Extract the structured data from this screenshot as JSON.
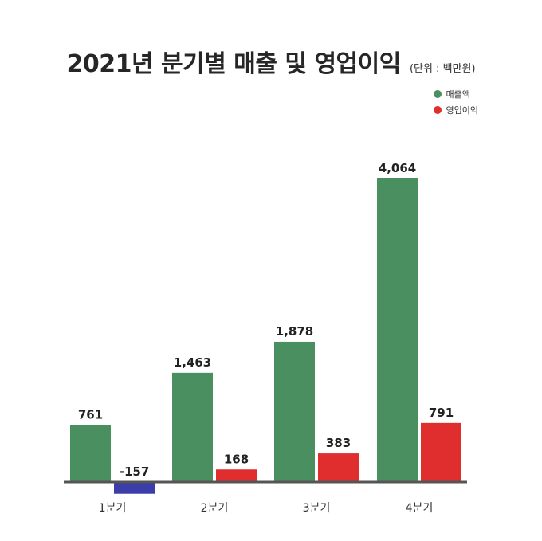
{
  "title": "2021년 분기별 매출 및 영업이익",
  "unit": "(단위 : 백만원)",
  "legend": [
    {
      "name": "매출액",
      "color": "#4a8f5f"
    },
    {
      "name": "영업이익",
      "color": "#e02d2d"
    }
  ],
  "chart_data": {
    "type": "bar",
    "title": "2021년 분기별 매출 및 영업이익",
    "subtitle": "(단위 : 백만원)",
    "categories": [
      "1분기",
      "2분기",
      "3분기",
      "4분기"
    ],
    "series": [
      {
        "name": "매출액",
        "values": [
          761,
          1463,
          1878,
          4064
        ],
        "color": "#4a8f5f"
      },
      {
        "name": "영업이익",
        "values": [
          -157,
          168,
          383,
          791
        ],
        "color": "#e02d2d",
        "negative_color": "#3b3ea8"
      }
    ],
    "value_labels": {
      "series_0": [
        "761",
        "1,463",
        "1,878",
        "4,064"
      ],
      "series_1": [
        "-157",
        "168",
        "383",
        "791"
      ]
    },
    "legend_position": "top-right",
    "grid": false,
    "axis_color": "#555555"
  }
}
